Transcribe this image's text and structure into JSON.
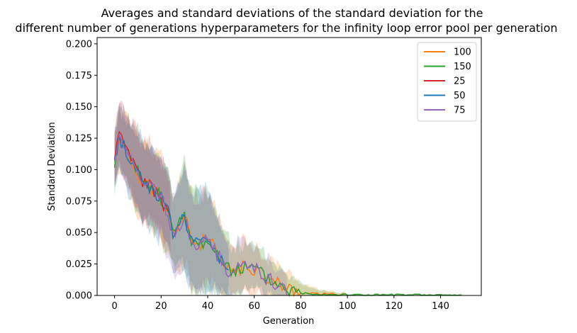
{
  "chart_data": {
    "type": "line",
    "title_lines": [
      "Averages and standard deviations of the standard deviation for the",
      "different number of generations hyperparameters for the infinity loop error pool per generation"
    ],
    "xlabel": "Generation",
    "ylabel": "Standard Deviation",
    "xlim": [
      -7.5,
      157.5
    ],
    "ylim": [
      0,
      0.205
    ],
    "xticks": [
      0,
      20,
      40,
      60,
      80,
      100,
      120,
      140
    ],
    "yticks": [
      0.0,
      0.025,
      0.05,
      0.075,
      0.1,
      0.125,
      0.15,
      0.175,
      0.2
    ],
    "ytick_labels": [
      "0.000",
      "0.025",
      "0.050",
      "0.075",
      "0.100",
      "0.125",
      "0.150",
      "0.175",
      "0.200"
    ],
    "grid": false,
    "legend_position": "top-right",
    "series": [
      {
        "name": "100",
        "color": "#ff7f0e",
        "length": 100,
        "seed": 11
      },
      {
        "name": "150",
        "color": "#2ca02c",
        "length": 150,
        "seed": 23
      },
      {
        "name": "25",
        "color": "#d62728",
        "length": 25,
        "seed": 37
      },
      {
        "name": "50",
        "color": "#1f77b4",
        "length": 50,
        "seed": 41
      },
      {
        "name": "75",
        "color": "#9467bd",
        "length": 75,
        "seed": 59
      }
    ],
    "mean_profile": {
      "x": [
        0,
        2,
        5,
        8,
        12,
        16,
        20,
        23,
        25,
        30,
        33,
        36,
        40,
        44,
        48,
        52,
        56,
        60,
        64,
        68,
        72,
        76,
        80,
        90,
        100,
        120,
        150
      ],
      "y": [
        0.106,
        0.126,
        0.115,
        0.103,
        0.092,
        0.085,
        0.078,
        0.065,
        0.05,
        0.062,
        0.045,
        0.04,
        0.045,
        0.033,
        0.02,
        0.021,
        0.022,
        0.022,
        0.016,
        0.011,
        0.008,
        0.004,
        0.002,
        0.001,
        0.0005,
        0.0003,
        0.0002
      ]
    },
    "std_profile": {
      "x": [
        0,
        3,
        10,
        20,
        25,
        30,
        40,
        50,
        60,
        70,
        80,
        90,
        100,
        150
      ],
      "y": [
        0.02,
        0.025,
        0.03,
        0.032,
        0.028,
        0.04,
        0.038,
        0.02,
        0.018,
        0.015,
        0.008,
        0.003,
        0.001,
        0.0005
      ]
    }
  }
}
